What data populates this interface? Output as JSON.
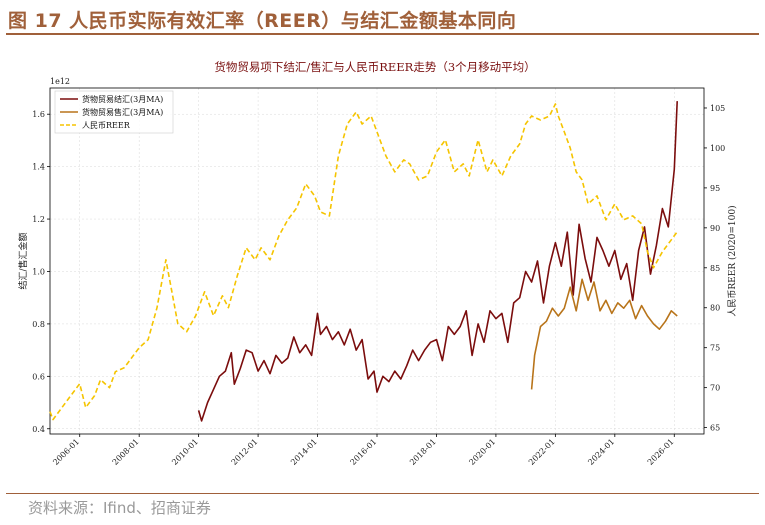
{
  "header": {
    "figure_title": "图 17 人民币实际有效汇率（REER）与结汇金额基本同向"
  },
  "footer": {
    "source": "资料来源：Ifind、招商证券"
  },
  "colors": {
    "accent": "#a0603a",
    "settlement": "#7b0d0d",
    "sale": "#b8741a",
    "reer": "#f5c400"
  },
  "chart_data": {
    "type": "line",
    "title": "货物贸易项下结汇/售汇与人民币REER走势（3个月移动平均）",
    "y_left_label": "结汇/售汇金额",
    "y_left_multiplier": "1e12",
    "y_right_label": "人民币REER (2020=100)",
    "y_left_range": [
      0.38,
      1.7
    ],
    "y_right_range": [
      64.2,
      107.5
    ],
    "y_left_ticks": [
      "0.4",
      "0.6",
      "0.8",
      "1.0",
      "1.2",
      "1.4",
      "1.6"
    ],
    "y_right_ticks": [
      "65",
      "70",
      "75",
      "80",
      "85",
      "90",
      "95",
      "100",
      "105"
    ],
    "x_range": [
      2005.0,
      2027.0
    ],
    "x_ticks": [
      "2006-01",
      "2008-01",
      "2010-01",
      "2012-01",
      "2014-01",
      "2016-01",
      "2018-01",
      "2020-01",
      "2022-01",
      "2024-01",
      "2026-01"
    ],
    "grid": true,
    "legend_position": "top-left",
    "series": [
      {
        "name": "货物贸易结汇(3月MA)",
        "axis": "left",
        "line_style": "solid",
        "x": [
          2010.0,
          2010.1,
          2010.3,
          2010.5,
          2010.7,
          2010.9,
          2011.1,
          2011.2,
          2011.4,
          2011.6,
          2011.8,
          2012.0,
          2012.2,
          2012.4,
          2012.6,
          2012.8,
          2013.0,
          2013.2,
          2013.4,
          2013.6,
          2013.8,
          2014.0,
          2014.1,
          2014.3,
          2014.5,
          2014.7,
          2014.9,
          2015.1,
          2015.3,
          2015.5,
          2015.7,
          2015.9,
          2016.0,
          2016.2,
          2016.4,
          2016.6,
          2016.8,
          2017.0,
          2017.2,
          2017.4,
          2017.6,
          2017.8,
          2018.0,
          2018.2,
          2018.4,
          2018.6,
          2018.8,
          2019.0,
          2019.2,
          2019.4,
          2019.6,
          2019.8,
          2020.0,
          2020.2,
          2020.4,
          2020.6,
          2020.8,
          2021.0,
          2021.2,
          2021.4,
          2021.6,
          2021.8,
          2022.0,
          2022.2,
          2022.4,
          2022.6,
          2022.8,
          2023.0,
          2023.2,
          2023.4,
          2023.6,
          2023.8,
          2024.0,
          2024.2,
          2024.4,
          2024.6,
          2024.8,
          2025.0,
          2025.2,
          2025.4,
          2025.6,
          2025.8,
          2026.0,
          2026.1
        ],
        "values": [
          0.47,
          0.43,
          0.5,
          0.55,
          0.6,
          0.62,
          0.69,
          0.57,
          0.63,
          0.7,
          0.69,
          0.62,
          0.66,
          0.61,
          0.68,
          0.65,
          0.67,
          0.75,
          0.69,
          0.72,
          0.68,
          0.84,
          0.76,
          0.79,
          0.74,
          0.77,
          0.72,
          0.78,
          0.7,
          0.74,
          0.59,
          0.62,
          0.54,
          0.6,
          0.58,
          0.62,
          0.59,
          0.64,
          0.7,
          0.66,
          0.7,
          0.73,
          0.74,
          0.66,
          0.79,
          0.76,
          0.79,
          0.85,
          0.68,
          0.8,
          0.73,
          0.85,
          0.82,
          0.84,
          0.73,
          0.88,
          0.9,
          1.0,
          0.96,
          1.04,
          0.88,
          1.02,
          1.11,
          1.02,
          1.15,
          0.91,
          1.18,
          1.05,
          0.96,
          1.13,
          1.08,
          1.02,
          1.08,
          0.97,
          1.03,
          0.89,
          1.08,
          1.17,
          0.99,
          1.1,
          1.24,
          1.17,
          1.39,
          1.65
        ]
      },
      {
        "name": "货物贸易售汇(3月MA)",
        "axis": "left",
        "line_style": "solid",
        "x": [
          2021.2,
          2021.3,
          2021.5,
          2021.7,
          2021.9,
          2022.1,
          2022.3,
          2022.5,
          2022.7,
          2022.9,
          2023.1,
          2023.3,
          2023.5,
          2023.7,
          2023.9,
          2024.1,
          2024.3,
          2024.5,
          2024.7,
          2024.9,
          2025.1,
          2025.3,
          2025.5,
          2025.7,
          2025.9,
          2026.1
        ],
        "values": [
          0.55,
          0.68,
          0.79,
          0.81,
          0.86,
          0.83,
          0.86,
          0.94,
          0.85,
          0.97,
          0.89,
          0.96,
          0.85,
          0.89,
          0.84,
          0.88,
          0.86,
          0.89,
          0.82,
          0.87,
          0.83,
          0.8,
          0.78,
          0.81,
          0.85,
          0.83
        ]
      },
      {
        "name": "人民币REER",
        "axis": "right",
        "line_style": "dashed",
        "x": [
          2005.0,
          2005.1,
          2005.4,
          2005.7,
          2006.0,
          2006.2,
          2006.5,
          2006.7,
          2007.0,
          2007.2,
          2007.5,
          2007.8,
          2008.0,
          2008.3,
          2008.6,
          2008.9,
          2009.1,
          2009.3,
          2009.6,
          2009.9,
          2010.0,
          2010.2,
          2010.5,
          2010.8,
          2011.0,
          2011.3,
          2011.6,
          2011.9,
          2012.1,
          2012.4,
          2012.7,
          2013.0,
          2013.3,
          2013.6,
          2013.9,
          2014.1,
          2014.4,
          2014.7,
          2015.0,
          2015.3,
          2015.5,
          2015.8,
          2016.0,
          2016.3,
          2016.6,
          2016.9,
          2017.1,
          2017.4,
          2017.7,
          2018.0,
          2018.3,
          2018.6,
          2018.9,
          2019.1,
          2019.4,
          2019.7,
          2019.9,
          2020.2,
          2020.5,
          2020.8,
          2021.0,
          2021.2,
          2021.5,
          2021.8,
          2022.0,
          2022.1,
          2022.3,
          2022.5,
          2022.7,
          2022.9,
          2023.1,
          2023.4,
          2023.7,
          2024.0,
          2024.3,
          2024.6,
          2024.9,
          2025.1,
          2025.3,
          2025.6,
          2025.9,
          2026.1
        ],
        "values": [
          67.0,
          66.0,
          67.5,
          69.0,
          70.5,
          67.5,
          69.0,
          71.0,
          70.0,
          72.0,
          72.5,
          74.0,
          75.0,
          76.0,
          80.0,
          86.0,
          82.0,
          78.0,
          77.0,
          79.0,
          80.0,
          82.0,
          79.0,
          81.5,
          80.0,
          84.0,
          87.5,
          86.0,
          87.5,
          86.0,
          89.0,
          91.0,
          92.5,
          95.5,
          94.0,
          92.0,
          91.5,
          99.0,
          103.0,
          104.5,
          103.0,
          104.0,
          102.0,
          99.0,
          97.0,
          98.5,
          98.0,
          96.0,
          96.5,
          99.5,
          101.0,
          97.0,
          98.0,
          96.5,
          101.0,
          97.0,
          98.5,
          96.5,
          99.0,
          100.5,
          103.0,
          104.0,
          103.5,
          104.0,
          105.5,
          104.0,
          102.0,
          100.0,
          97.0,
          96.0,
          93.0,
          94.0,
          91.0,
          93.0,
          91.0,
          91.5,
          90.5,
          87.0,
          85.0,
          87.0,
          88.5,
          89.5
        ]
      }
    ]
  }
}
